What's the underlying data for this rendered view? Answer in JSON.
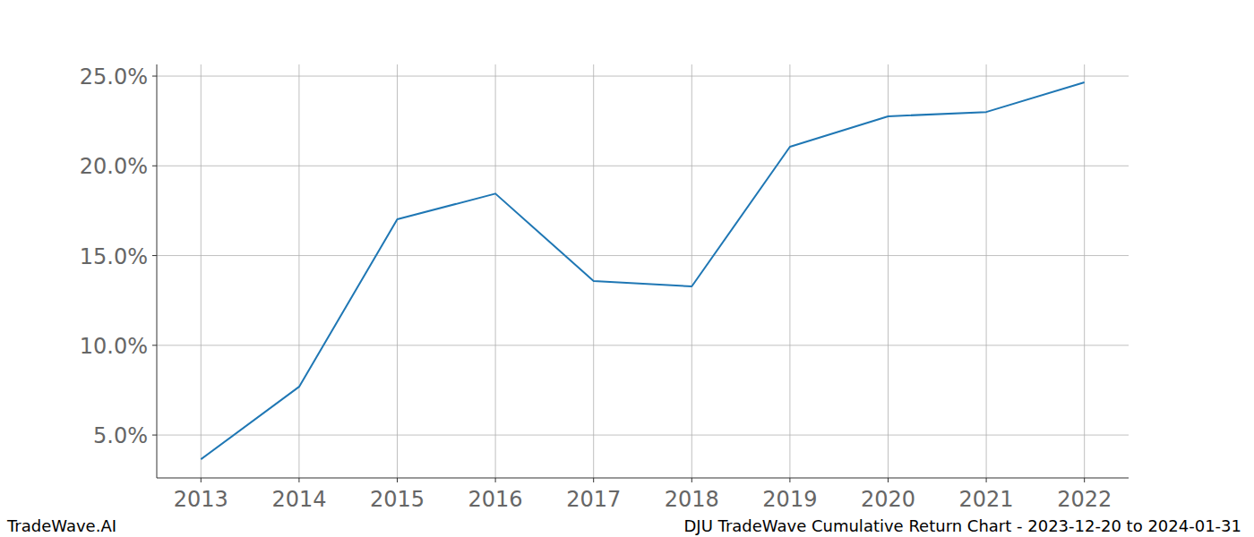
{
  "chart_data": {
    "type": "line",
    "title": "DJU TradeWave Cumulative Return Chart - 2023-12-20 to 2024-01-31",
    "source": "TradeWave.AI",
    "x": [
      2013,
      2014,
      2015,
      2016,
      2017,
      2018,
      2019,
      2020,
      2021,
      2022
    ],
    "values": [
      3.65,
      7.69,
      17.02,
      18.45,
      13.58,
      13.28,
      21.06,
      22.76,
      23.0,
      24.65
    ],
    "color": "#1f77b4",
    "xlim": [
      2012.55,
      2022.45
    ],
    "xticks": [
      2013,
      2014,
      2015,
      2016,
      2017,
      2018,
      2019,
      2020,
      2021,
      2022
    ],
    "ylim": [
      2.61,
      25.65
    ],
    "yticks": [
      {
        "value": 5,
        "label": "5.0%"
      },
      {
        "value": 10,
        "label": "10.0%"
      },
      {
        "value": 15,
        "label": "15.0%"
      },
      {
        "value": 20,
        "label": "20.0%"
      },
      {
        "value": 25,
        "label": "25.0%"
      }
    ],
    "grid": true
  }
}
